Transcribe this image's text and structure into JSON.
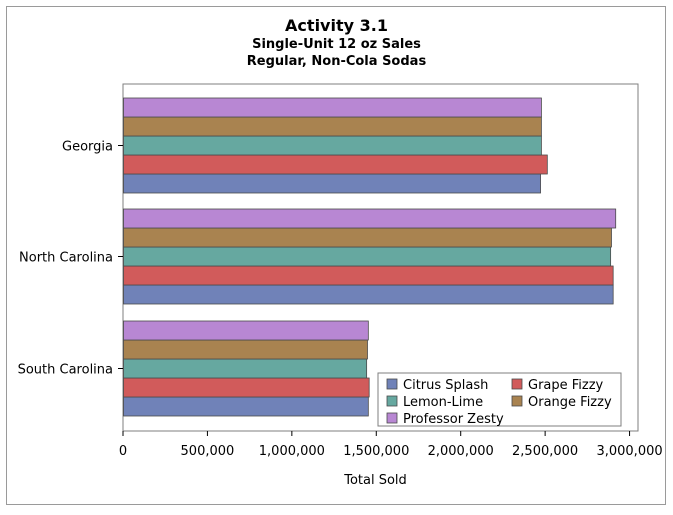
{
  "chart_data": {
    "type": "bar",
    "orientation": "horizontal",
    "title": "Activity 3.1",
    "subtitle_lines": [
      "Single-Unit 12 oz Sales",
      "Regular, Non-Cola Sodas"
    ],
    "xlabel": "Total Sold",
    "ylabel": "",
    "xlim": [
      0,
      3050000
    ],
    "x_ticks": [
      0,
      500000,
      1000000,
      1500000,
      2000000,
      2500000,
      3000000
    ],
    "x_tick_labels": [
      "0",
      "500,000",
      "1,000,000",
      "1,500,000",
      "2,000,000",
      "2,500,000",
      "3,000,000"
    ],
    "categories": [
      "Georgia",
      "North Carolina",
      "South Carolina"
    ],
    "series": [
      {
        "name": "Citrus Splash",
        "color": "#7082b8",
        "values": [
          2470000,
          2900000,
          1450000
        ]
      },
      {
        "name": "Grape Fizzy",
        "color": "#d15b5b",
        "values": [
          2510000,
          2900000,
          1455000
        ]
      },
      {
        "name": "Lemon-Lime",
        "color": "#66a8a0",
        "values": [
          2475000,
          2885000,
          1440000
        ]
      },
      {
        "name": "Orange Fizzy",
        "color": "#a98350",
        "values": [
          2475000,
          2890000,
          1445000
        ]
      },
      {
        "name": "Professor Zesty",
        "color": "#b887d3",
        "values": [
          2475000,
          2915000,
          1450000
        ]
      }
    ],
    "legend": {
      "placement": "bottom-right-inside",
      "order": [
        "Citrus Splash",
        "Grape Fizzy",
        "Lemon-Lime",
        "Orange Fizzy",
        "Professor Zesty"
      ]
    },
    "grid": false
  }
}
